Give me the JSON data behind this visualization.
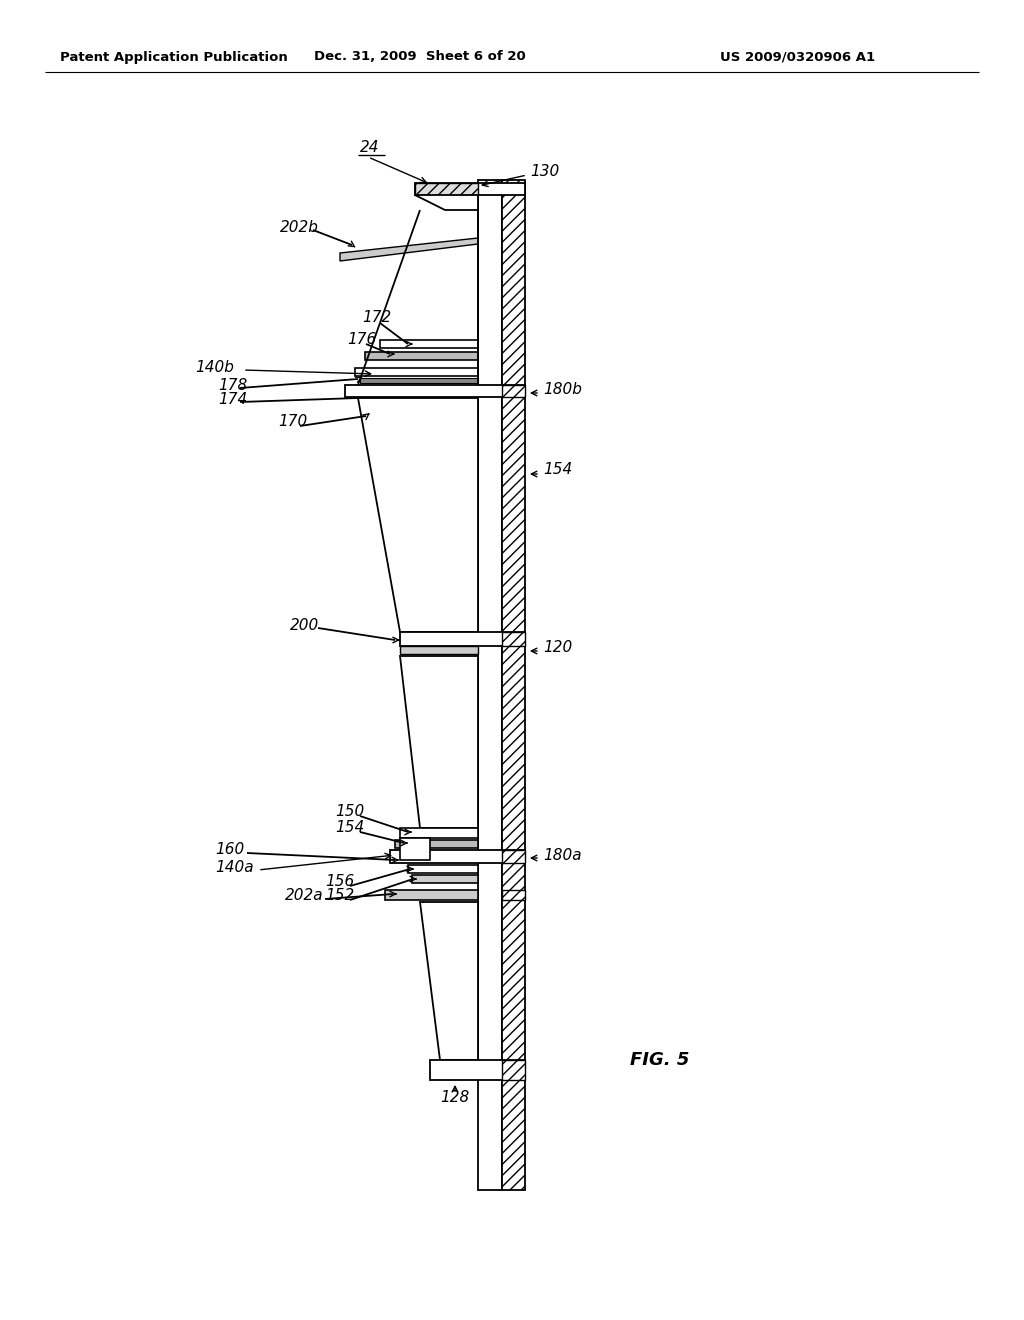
{
  "bg_color": "#ffffff",
  "header_left": "Patent Application Publication",
  "header_mid": "Dec. 31, 2009  Sheet 6 of 20",
  "header_right": "US 2009/0320906 A1",
  "fig_label": "FIG. 5",
  "line_color": "#000000"
}
